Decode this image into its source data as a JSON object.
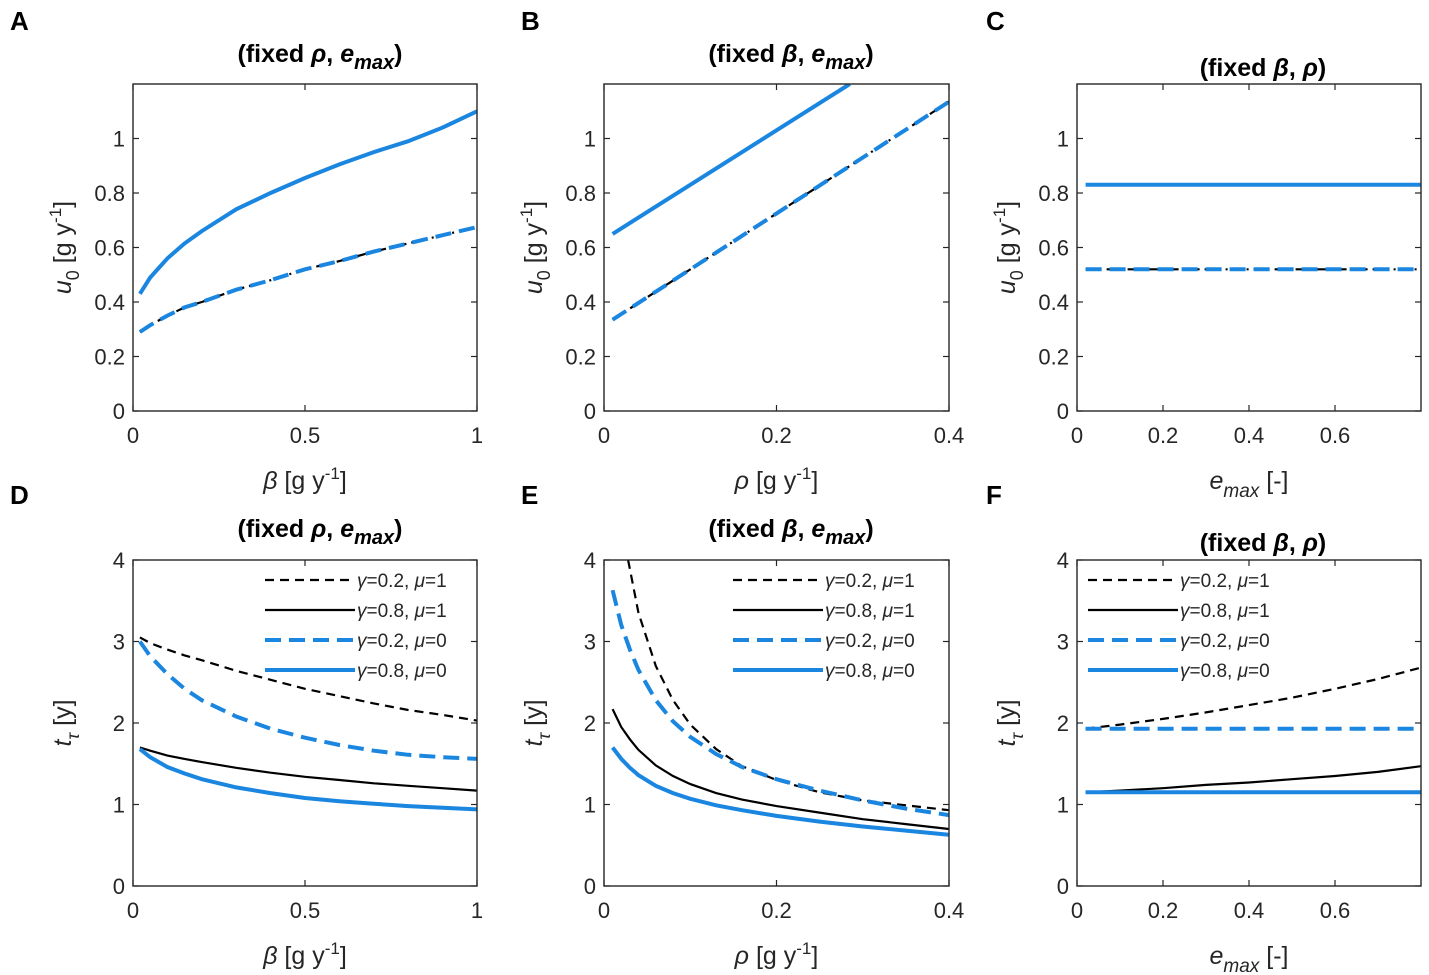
{
  "figure": {
    "colors": {
      "black": "#000000",
      "blue": "#1a86e0",
      "axis": "#262626"
    }
  },
  "chart_data": [
    {
      "id": "A",
      "letter": "A",
      "type": "line",
      "title": "(fixed ρ, e_max)",
      "title_parts": [
        "(fixed ",
        "ρ",
        ", ",
        "e",
        "max",
        ")"
      ],
      "xlabel_parts": [
        "β",
        " [g y",
        "-1",
        "]"
      ],
      "ylabel_parts": [
        "u",
        "0",
        " [g y",
        "-1",
        "]"
      ],
      "xlim": [
        0,
        1
      ],
      "ylim": [
        0,
        1.2
      ],
      "xticks": [
        0,
        0.5,
        1
      ],
      "xtick_labels": [
        "0",
        "0.5",
        "1"
      ],
      "yticks": [
        0,
        0.2,
        0.4,
        0.6,
        0.8,
        1
      ],
      "ytick_labels": [
        "0",
        "0.2",
        "0.4",
        "0.6",
        "0.8",
        "1"
      ],
      "series": [
        {
          "name": "γ=0.8",
          "style": "blue-solid",
          "x": [
            0.02,
            0.05,
            0.1,
            0.15,
            0.2,
            0.3,
            0.4,
            0.5,
            0.6,
            0.7,
            0.8,
            0.9,
            1.0
          ],
          "y": [
            0.43,
            0.49,
            0.56,
            0.615,
            0.66,
            0.74,
            0.8,
            0.855,
            0.905,
            0.95,
            0.99,
            1.04,
            1.1
          ]
        },
        {
          "name": "γ=0.2, μ=1",
          "style": "black-dashdot",
          "x": [
            0.02,
            0.05,
            0.1,
            0.15,
            0.2,
            0.3,
            0.4,
            0.5,
            0.6,
            0.7,
            0.8,
            0.9,
            1.0
          ],
          "y": [
            0.29,
            0.315,
            0.35,
            0.38,
            0.4,
            0.445,
            0.48,
            0.52,
            0.55,
            0.585,
            0.615,
            0.645,
            0.675
          ]
        },
        {
          "name": "γ=0.2, μ=0",
          "style": "blue-dashed",
          "x": [
            0.02,
            0.05,
            0.1,
            0.15,
            0.2,
            0.3,
            0.4,
            0.5,
            0.6,
            0.7,
            0.8,
            0.9,
            1.0
          ],
          "y": [
            0.29,
            0.315,
            0.35,
            0.38,
            0.4,
            0.445,
            0.48,
            0.52,
            0.55,
            0.585,
            0.615,
            0.645,
            0.675
          ]
        }
      ]
    },
    {
      "id": "B",
      "letter": "B",
      "type": "line",
      "title": "(fixed β, e_max)",
      "title_parts": [
        "(fixed ",
        "β",
        ", ",
        "e",
        "max",
        ")"
      ],
      "xlabel_parts": [
        "ρ",
        " [g y",
        "-1",
        "]"
      ],
      "ylabel_parts": [
        "u",
        "0",
        " [g y",
        "-1",
        "]"
      ],
      "xlim": [
        0,
        0.4
      ],
      "ylim": [
        0,
        1.2
      ],
      "xticks": [
        0,
        0.2,
        0.4
      ],
      "xtick_labels": [
        "0",
        "0.2",
        "0.4"
      ],
      "yticks": [
        0,
        0.2,
        0.4,
        0.6,
        0.8,
        1
      ],
      "ytick_labels": [
        "0",
        "0.2",
        "0.4",
        "0.6",
        "0.8",
        "1"
      ],
      "series": [
        {
          "name": "γ=0.8",
          "style": "blue-solid",
          "x": [
            0.01,
            0.285
          ],
          "y": [
            0.65,
            1.2
          ]
        },
        {
          "name": "γ=0.2, μ=1",
          "style": "black-dashdot",
          "x": [
            0.01,
            0.4
          ],
          "y": [
            0.335,
            1.135
          ]
        },
        {
          "name": "γ=0.2, μ=0",
          "style": "blue-dashed",
          "x": [
            0.01,
            0.4
          ],
          "y": [
            0.335,
            1.135
          ]
        }
      ]
    },
    {
      "id": "C",
      "letter": "C",
      "type": "line",
      "title": "(fixed β, ρ)",
      "title_parts": [
        "(fixed ",
        "β",
        ", ",
        "ρ",
        ")"
      ],
      "xlabel_parts": [
        "e",
        "max",
        " [-]"
      ],
      "ylabel_parts": [
        "u",
        "0",
        " [g y",
        "-1",
        "]"
      ],
      "xlim": [
        0,
        0.8
      ],
      "ylim": [
        0,
        1.2
      ],
      "xticks": [
        0,
        0.2,
        0.4,
        0.6
      ],
      "xtick_labels": [
        "0",
        "0.2",
        "0.4",
        "0.6"
      ],
      "yticks": [
        0,
        0.2,
        0.4,
        0.6,
        0.8,
        1
      ],
      "ytick_labels": [
        "0",
        "0.2",
        "0.4",
        "0.6",
        "0.8",
        "1"
      ],
      "series": [
        {
          "name": "γ=0.8",
          "style": "blue-solid",
          "x": [
            0.02,
            0.8
          ],
          "y": [
            0.83,
            0.83
          ]
        },
        {
          "name": "γ=0.2, μ=1",
          "style": "black-dashdot",
          "x": [
            0.02,
            0.8
          ],
          "y": [
            0.52,
            0.52
          ]
        },
        {
          "name": "γ=0.2, μ=0",
          "style": "blue-dashed",
          "x": [
            0.02,
            0.8
          ],
          "y": [
            0.52,
            0.52
          ]
        }
      ]
    },
    {
      "id": "D",
      "letter": "D",
      "type": "line",
      "title": "(fixed ρ, e_max)",
      "title_parts": [
        "(fixed ",
        "ρ",
        ", ",
        "e",
        "max",
        ")"
      ],
      "xlabel_parts": [
        "β",
        " [g y",
        "-1",
        "]"
      ],
      "ylabel_parts": [
        "t",
        "τ",
        " [y]"
      ],
      "xlim": [
        0,
        1
      ],
      "ylim": [
        0,
        4
      ],
      "xticks": [
        0,
        0.5,
        1
      ],
      "xtick_labels": [
        "0",
        "0.5",
        "1"
      ],
      "yticks": [
        0,
        1,
        2,
        3,
        4
      ],
      "ytick_labels": [
        "0",
        "1",
        "2",
        "3",
        "4"
      ],
      "legend": [
        "γ=0.2, μ=1",
        "γ=0.8, μ=1",
        "γ=0.2, μ=0",
        "γ=0.8, μ=0"
      ],
      "legend_tail": [
        "γ",
        "=0.2, ",
        "μ",
        "=1"
      ],
      "series": [
        {
          "name": "γ=0.2, μ=1",
          "style": "black-dashed",
          "x": [
            0.02,
            0.05,
            0.1,
            0.15,
            0.2,
            0.3,
            0.4,
            0.5,
            0.6,
            0.7,
            0.8,
            0.9,
            1.0
          ],
          "y": [
            3.05,
            2.98,
            2.9,
            2.83,
            2.77,
            2.64,
            2.53,
            2.42,
            2.33,
            2.24,
            2.16,
            2.1,
            2.03
          ]
        },
        {
          "name": "γ=0.8, μ=1",
          "style": "black-solid",
          "x": [
            0.02,
            0.05,
            0.1,
            0.15,
            0.2,
            0.3,
            0.4,
            0.5,
            0.6,
            0.7,
            0.8,
            0.9,
            1.0
          ],
          "y": [
            1.7,
            1.66,
            1.6,
            1.56,
            1.52,
            1.45,
            1.39,
            1.34,
            1.3,
            1.26,
            1.23,
            1.2,
            1.17
          ]
        },
        {
          "name": "γ=0.2, μ=0",
          "style": "blue-dashed",
          "x": [
            0.02,
            0.05,
            0.1,
            0.15,
            0.2,
            0.3,
            0.4,
            0.5,
            0.6,
            0.7,
            0.8,
            0.9,
            1.0
          ],
          "y": [
            3.0,
            2.82,
            2.6,
            2.42,
            2.28,
            2.08,
            1.93,
            1.82,
            1.73,
            1.66,
            1.61,
            1.58,
            1.56
          ]
        },
        {
          "name": "γ=0.8, μ=0",
          "style": "blue-solid",
          "x": [
            0.02,
            0.05,
            0.1,
            0.15,
            0.2,
            0.3,
            0.4,
            0.5,
            0.6,
            0.7,
            0.8,
            0.9,
            1.0
          ],
          "y": [
            1.68,
            1.58,
            1.46,
            1.38,
            1.31,
            1.21,
            1.14,
            1.08,
            1.04,
            1.01,
            0.98,
            0.96,
            0.94
          ]
        }
      ]
    },
    {
      "id": "E",
      "letter": "E",
      "type": "line",
      "title": "(fixed β, e_max)",
      "title_parts": [
        "(fixed ",
        "β",
        ", ",
        "e",
        "max",
        ")"
      ],
      "xlabel_parts": [
        "ρ",
        " [g y",
        "-1",
        "]"
      ],
      "ylabel_parts": [
        "t",
        "τ",
        " [y]"
      ],
      "xlim": [
        0,
        0.4
      ],
      "ylim": [
        0,
        4
      ],
      "xticks": [
        0,
        0.2,
        0.4
      ],
      "xtick_labels": [
        "0",
        "0.2",
        "0.4"
      ],
      "yticks": [
        0,
        1,
        2,
        3,
        4
      ],
      "ytick_labels": [
        "0",
        "1",
        "2",
        "3",
        "4"
      ],
      "legend": [
        "γ=0.2, μ=1",
        "γ=0.8, μ=1",
        "γ=0.2, μ=0",
        "γ=0.8, μ=0"
      ],
      "legend_tail": [
        "γ",
        "=0.2, ",
        "μ",
        "=1"
      ],
      "series": [
        {
          "name": "γ=0.2, μ=1",
          "style": "black-dashed",
          "x": [
            0.028,
            0.04,
            0.06,
            0.08,
            0.1,
            0.13,
            0.16,
            0.2,
            0.25,
            0.3,
            0.35,
            0.4
          ],
          "y": [
            4.0,
            3.35,
            2.7,
            2.28,
            1.98,
            1.68,
            1.47,
            1.3,
            1.15,
            1.05,
            0.99,
            0.93
          ]
        },
        {
          "name": "γ=0.8, μ=1",
          "style": "black-solid",
          "x": [
            0.01,
            0.02,
            0.03,
            0.04,
            0.06,
            0.08,
            0.1,
            0.13,
            0.16,
            0.2,
            0.25,
            0.3,
            0.35,
            0.4
          ],
          "y": [
            2.17,
            1.95,
            1.8,
            1.67,
            1.48,
            1.35,
            1.25,
            1.14,
            1.06,
            0.98,
            0.9,
            0.82,
            0.76,
            0.7
          ]
        },
        {
          "name": "γ=0.2, μ=0",
          "style": "blue-dashed",
          "x": [
            0.01,
            0.02,
            0.03,
            0.04,
            0.06,
            0.08,
            0.1,
            0.13,
            0.16,
            0.2,
            0.25,
            0.3,
            0.35,
            0.4
          ],
          "y": [
            3.63,
            3.2,
            2.9,
            2.65,
            2.28,
            2.02,
            1.83,
            1.62,
            1.46,
            1.31,
            1.17,
            1.05,
            0.95,
            0.87
          ]
        },
        {
          "name": "γ=0.8, μ=0",
          "style": "blue-solid",
          "x": [
            0.01,
            0.02,
            0.03,
            0.04,
            0.06,
            0.08,
            0.1,
            0.13,
            0.16,
            0.2,
            0.25,
            0.3,
            0.35,
            0.4
          ],
          "y": [
            1.7,
            1.56,
            1.45,
            1.36,
            1.23,
            1.14,
            1.07,
            0.99,
            0.93,
            0.86,
            0.79,
            0.73,
            0.68,
            0.63
          ]
        }
      ]
    },
    {
      "id": "F",
      "letter": "F",
      "type": "line",
      "title": "(fixed β, ρ)",
      "title_parts": [
        "(fixed ",
        "β",
        ", ",
        "ρ",
        ")"
      ],
      "xlabel_parts": [
        "e",
        "max",
        " [-]"
      ],
      "ylabel_parts": [
        "t",
        "τ",
        " [y]"
      ],
      "xlim": [
        0,
        0.8
      ],
      "ylim": [
        0,
        4
      ],
      "xticks": [
        0,
        0.2,
        0.4,
        0.6
      ],
      "xtick_labels": [
        "0",
        "0.2",
        "0.4",
        "0.6"
      ],
      "yticks": [
        0,
        1,
        2,
        3,
        4
      ],
      "ytick_labels": [
        "0",
        "1",
        "2",
        "3",
        "4"
      ],
      "legend": [
        "γ=0.2, μ=1",
        "γ=0.8, μ=1",
        "γ=0.2, μ=0",
        "γ=0.8, μ=0"
      ],
      "legend_tail": [
        "γ",
        "=0.2, ",
        "μ",
        "=1"
      ],
      "series": [
        {
          "name": "γ=0.2, μ=1",
          "style": "black-dashed",
          "x": [
            0.02,
            0.1,
            0.2,
            0.3,
            0.4,
            0.5,
            0.6,
            0.7,
            0.8
          ],
          "y": [
            1.93,
            1.98,
            2.05,
            2.13,
            2.22,
            2.31,
            2.42,
            2.54,
            2.68
          ]
        },
        {
          "name": "γ=0.8, μ=1",
          "style": "black-solid",
          "x": [
            0.02,
            0.1,
            0.2,
            0.3,
            0.4,
            0.5,
            0.6,
            0.7,
            0.8
          ],
          "y": [
            1.15,
            1.17,
            1.2,
            1.24,
            1.27,
            1.31,
            1.35,
            1.4,
            1.47
          ]
        },
        {
          "name": "γ=0.2, μ=0",
          "style": "blue-dashed",
          "x": [
            0.02,
            0.8
          ],
          "y": [
            1.93,
            1.93
          ]
        },
        {
          "name": "γ=0.8, μ=0",
          "style": "blue-solid",
          "x": [
            0.02,
            0.8
          ],
          "y": [
            1.15,
            1.15
          ]
        }
      ]
    }
  ]
}
